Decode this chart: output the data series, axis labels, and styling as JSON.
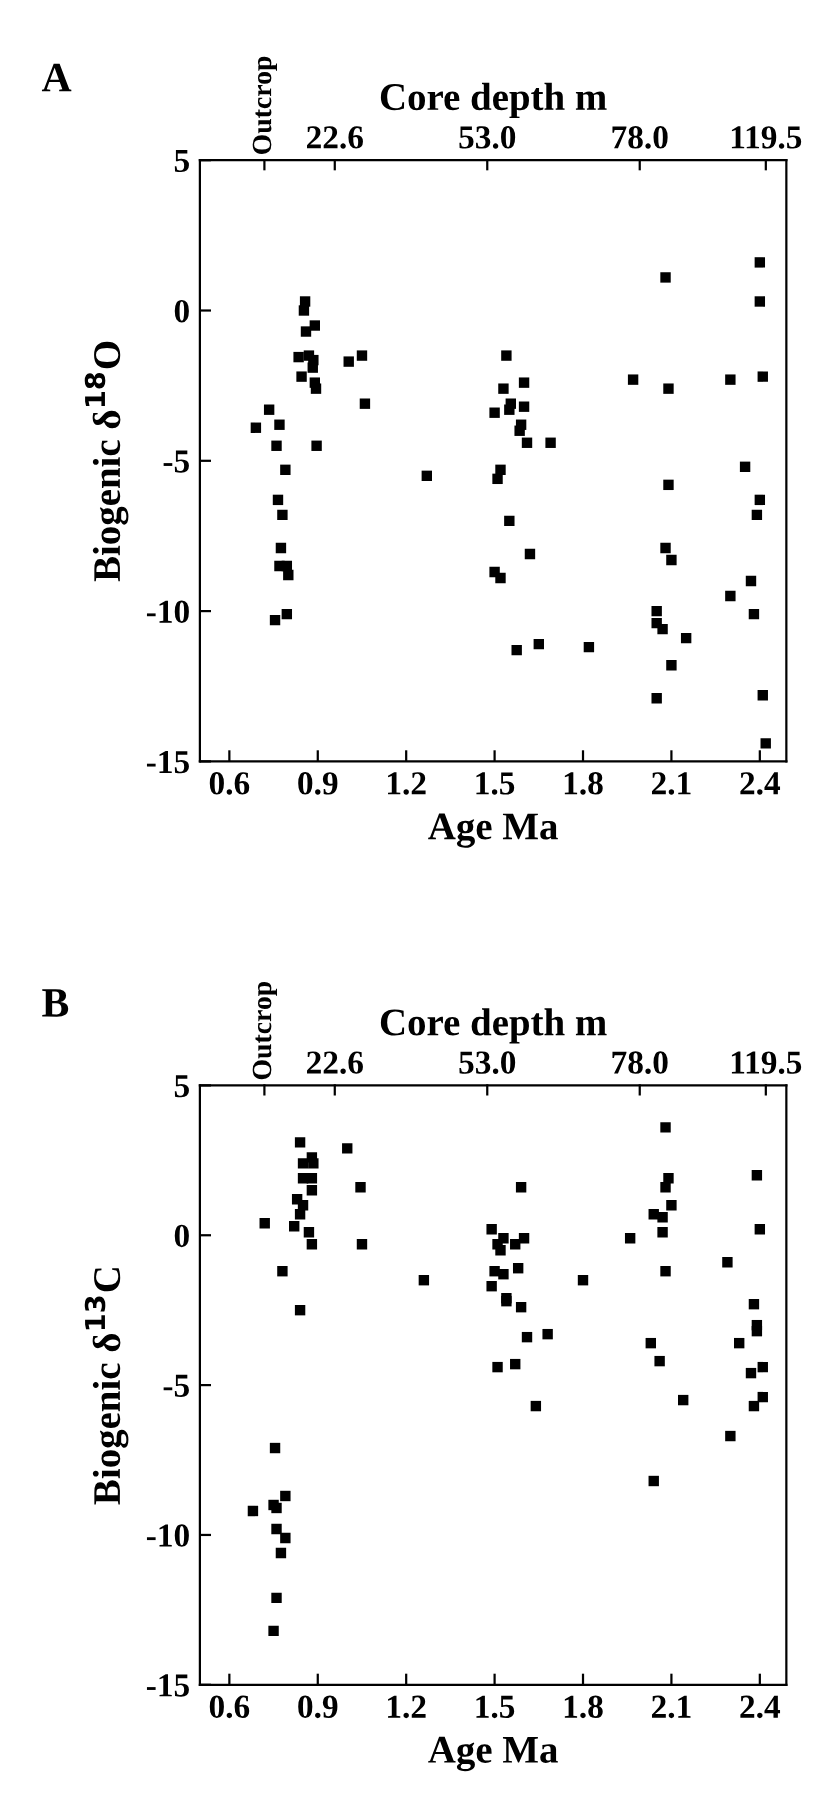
{
  "chart_data": [
    {
      "type": "scatter",
      "title": "A",
      "xlabel": "Age Ma",
      "ylabel": "Biogenic δ$^{18}$O",
      "x2label": "Core depth m",
      "xlim": [
        0.5,
        2.49
      ],
      "xticks": [
        0.6,
        0.9,
        1.2,
        1.5,
        1.8,
        2.1,
        2.4
      ],
      "ylim": [
        -15,
        5
      ],
      "yticks": [
        5,
        0,
        -5,
        -10,
        -15
      ],
      "annotations": [
        "Outcrop",
        "22.6",
        "53.0",
        "78.0",
        "119.5"
      ],
      "marker": "square",
      "grid": false,
      "legend": false,
      "series": [
        {
          "color": "#000000",
          "x": [
            0.69,
            0.735,
            0.77,
            0.76,
            0.79,
            0.765,
            0.78,
            0.775,
            0.77,
            0.795,
            0.8,
            0.755,
            0.795,
            0.857,
            0.853,
            0.86,
            0.89,
            0.835,
            0.87,
            0.885,
            0.883,
            0.845,
            0.89,
            0.894,
            0.896,
            1.005,
            1.05,
            1.06,
            1.27,
            1.54,
            1.53,
            1.6,
            1.5,
            1.55,
            1.555,
            1.6,
            1.59,
            1.585,
            1.61,
            1.69,
            1.52,
            1.51,
            1.55,
            1.62,
            1.5,
            1.52,
            1.575,
            1.65,
            1.82,
            1.97,
            2.08,
            2.09,
            2.09,
            2.08,
            2.1,
            2.05,
            2.05,
            2.07,
            2.15,
            2.1,
            2.05,
            2.4,
            2.4,
            2.41,
            2.3,
            2.35,
            2.4,
            2.39,
            2.37,
            2.3,
            2.38,
            2.41,
            2.42
          ],
          "values": [
            -3.9,
            -3.3,
            -3.8,
            -4.5,
            -5.3,
            -6.3,
            -6.8,
            -7.9,
            -8.5,
            -8.5,
            -8.8,
            -10.3,
            -10.1,
            0.3,
            0.0,
            -0.7,
            -0.5,
            -1.55,
            -1.5,
            -1.65,
            -1.9,
            -2.2,
            -2.4,
            -2.6,
            -4.5,
            -1.7,
            -1.5,
            -3.1,
            -5.5,
            -1.5,
            -2.6,
            -2.4,
            -3.4,
            -3.3,
            -3.1,
            -3.2,
            -3.8,
            -4.0,
            -4.4,
            -4.4,
            -5.3,
            -5.6,
            -7.0,
            -8.1,
            -8.7,
            -8.9,
            -11.3,
            -11.1,
            -11.2,
            -2.3,
            1.1,
            -2.6,
            -5.8,
            -7.9,
            -8.3,
            -10.0,
            -10.4,
            -10.6,
            -10.9,
            -11.8,
            -12.9,
            1.6,
            0.3,
            -2.2,
            -2.3,
            -5.2,
            -6.3,
            -6.8,
            -9.0,
            -9.5,
            -10.1,
            -12.8,
            -14.4
          ]
        }
      ]
    },
    {
      "type": "scatter",
      "title": "B",
      "xlabel": "Age Ma",
      "ylabel": "Biogenic δ$^{13}$C",
      "x2label": "Core depth m",
      "xlim": [
        0.5,
        2.49
      ],
      "xticks": [
        0.6,
        0.9,
        1.2,
        1.5,
        1.8,
        2.1,
        2.4
      ],
      "ylim": [
        -15,
        5
      ],
      "yticks": [
        5,
        0,
        -5,
        -10,
        -15
      ],
      "annotations": [
        "Outcrop",
        "22.6",
        "53.0",
        "78.0",
        "119.5"
      ],
      "marker": "square",
      "grid": false,
      "legend": false,
      "series": [
        {
          "color": "#000000",
          "x": [
            0.84,
            1.0,
            0.88,
            0.885,
            0.85,
            0.85,
            0.88,
            0.88,
            1.045,
            0.83,
            0.85,
            0.84,
            0.72,
            0.82,
            0.87,
            0.88,
            1.05,
            0.78,
            1.26,
            0.84,
            0.755,
            0.68,
            0.75,
            0.76,
            0.79,
            0.76,
            0.79,
            0.775,
            0.76,
            0.75,
            1.59,
            1.49,
            1.51,
            1.53,
            1.52,
            1.57,
            1.6,
            1.5,
            1.53,
            1.58,
            1.49,
            1.54,
            1.54,
            1.59,
            1.61,
            1.68,
            1.51,
            1.57,
            1.64,
            1.8,
            1.96,
            2.08,
            2.09,
            2.08,
            2.1,
            2.04,
            2.07,
            2.07,
            2.08,
            2.03,
            2.06,
            2.14,
            2.04,
            2.29,
            2.39,
            2.4,
            2.38,
            2.39,
            2.39,
            2.33,
            2.41,
            2.37,
            2.41,
            2.38,
            2.3
          ],
          "values": [
            3.1,
            2.9,
            2.6,
            2.4,
            2.4,
            1.9,
            1.9,
            1.5,
            1.6,
            1.2,
            1.0,
            0.7,
            0.4,
            0.3,
            0.1,
            -0.3,
            -0.3,
            -1.2,
            -1.5,
            -2.5,
            -7.1,
            -9.2,
            -9.0,
            -9.1,
            -8.7,
            -9.8,
            -10.1,
            -10.6,
            -12.1,
            -13.2,
            1.6,
            0.2,
            -0.3,
            -0.1,
            -0.5,
            -0.3,
            -0.1,
            -1.2,
            -1.3,
            -1.1,
            -1.7,
            -2.1,
            -2.2,
            -2.4,
            -3.4,
            -3.3,
            -4.4,
            -4.3,
            -5.7,
            -1.5,
            -0.1,
            3.6,
            1.9,
            1.6,
            1.0,
            0.7,
            0.6,
            0.1,
            -1.2,
            -3.6,
            -4.2,
            -5.5,
            -8.2,
            -0.9,
            2.0,
            0.2,
            -2.3,
            -3.0,
            -3.2,
            -3.6,
            -4.4,
            -4.6,
            -5.4,
            -5.7,
            -6.7
          ]
        }
      ]
    }
  ]
}
